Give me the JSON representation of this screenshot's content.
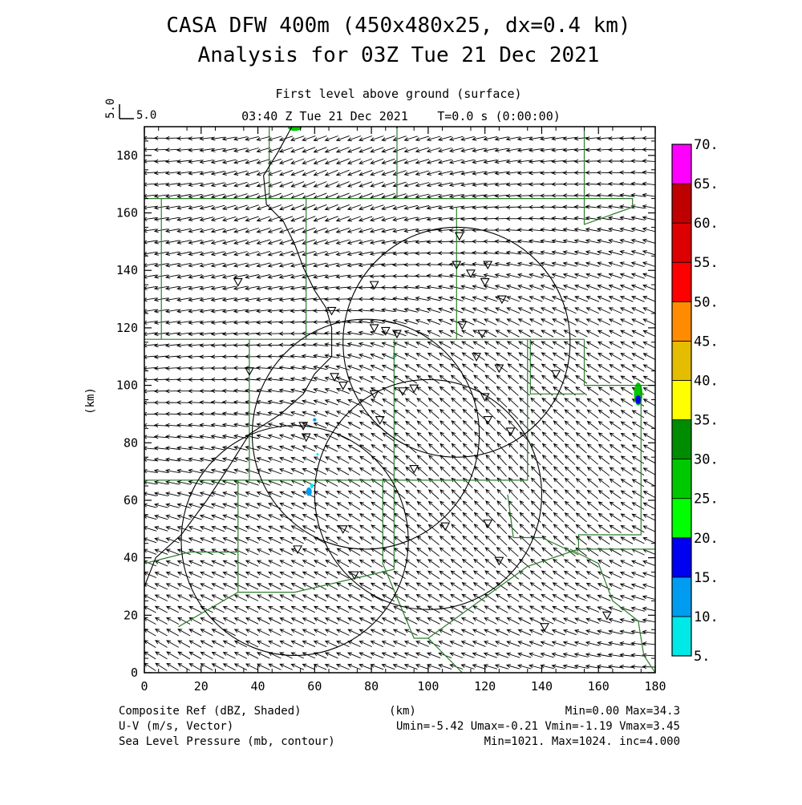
{
  "chart_data": {
    "type": "map",
    "title_line1": "CASA DFW 400m (450x480x25, dx=0.4 km)",
    "title_line2": "Analysis for 03Z Tue 21 Dec 2021",
    "subtitle": "First level above ground (surface)",
    "valid_time": "03:40 Z Tue 21 Dec 2021",
    "time_step": "T=0.0 s (0:00:00)",
    "ref_vector": {
      "label": "5.0",
      "side_label": "5.0",
      "value": 5.0
    },
    "xlabel": "(km)",
    "ylabel": "(km)",
    "xlim": [
      0,
      180
    ],
    "ylim": [
      0,
      190
    ],
    "x_ticks": [
      "0",
      "20",
      "40",
      "60",
      "80",
      "100",
      "120",
      "140",
      "160",
      "180"
    ],
    "x_tick_values": [
      0,
      20,
      40,
      60,
      80,
      100,
      120,
      140,
      160,
      180
    ],
    "y_ticks": [
      "0",
      "20",
      "40",
      "60",
      "80",
      "100",
      "120",
      "140",
      "160",
      "180"
    ],
    "y_tick_values": [
      0,
      20,
      40,
      60,
      80,
      100,
      120,
      140,
      160,
      180
    ],
    "colorbar": {
      "labels": [
        "5.",
        "10.",
        "15.",
        "20.",
        "25.",
        "30.",
        "35.",
        "40.",
        "45.",
        "50.",
        "55.",
        "60.",
        "65.",
        "70."
      ],
      "colors": [
        "#00e8e8",
        "#009cf0",
        "#0000f0",
        "#00ff00",
        "#00c800",
        "#008c00",
        "#ffff00",
        "#e4bc00",
        "#ff8c00",
        "#ff0000",
        "#dc0000",
        "#be0000",
        "#ff00ff"
      ]
    },
    "footer": {
      "left": [
        "Composite Ref (dBZ, Shaded)",
        "U-V (m/s, Vector)",
        "Sea Level Pressure (mb, contour)"
      ],
      "center": "(km)",
      "right": [
        "Min=0.00 Max=34.3",
        "Umin=-5.42 Umax=-0.21 Vmin=-1.19 Vmax=3.45",
        "Min=1021. Max=1024. inc=4.000"
      ]
    },
    "radar_rings": [
      {
        "cx": 110,
        "cy": 115,
        "r": 40
      },
      {
        "cx": 78,
        "cy": 83,
        "r": 40
      },
      {
        "cx": 100,
        "cy": 62,
        "r": 40
      },
      {
        "cx": 53,
        "cy": 46,
        "r": 40
      }
    ],
    "stations": [
      [
        89,
        191
      ],
      [
        111,
        152
      ],
      [
        110,
        142
      ],
      [
        115,
        139
      ],
      [
        121,
        142
      ],
      [
        120,
        136
      ],
      [
        126,
        130
      ],
      [
        33,
        136
      ],
      [
        81,
        135
      ],
      [
        66,
        126
      ],
      [
        81,
        120
      ],
      [
        85,
        119
      ],
      [
        89,
        118
      ],
      [
        112,
        121
      ],
      [
        119,
        118
      ],
      [
        117,
        110
      ],
      [
        125,
        106
      ],
      [
        145,
        104
      ],
      [
        37,
        105
      ],
      [
        67,
        103
      ],
      [
        70,
        100
      ],
      [
        81,
        97
      ],
      [
        91,
        98
      ],
      [
        95,
        99
      ],
      [
        120,
        96
      ],
      [
        121,
        88
      ],
      [
        83,
        88
      ],
      [
        129,
        84
      ],
      [
        56,
        86
      ],
      [
        57,
        82
      ],
      [
        95,
        71
      ],
      [
        70,
        50
      ],
      [
        106,
        51
      ],
      [
        121,
        52
      ],
      [
        54,
        43
      ],
      [
        125,
        39
      ],
      [
        74,
        34
      ],
      [
        141,
        16
      ],
      [
        163,
        20
      ]
    ],
    "reflectivity_cells": [
      {
        "x": 53,
        "y": 190,
        "rx": 2.5,
        "ry": 1.5,
        "dbz": 25
      },
      {
        "x": 174,
        "y": 97,
        "rx": 1.5,
        "ry": 4,
        "dbz": 25
      },
      {
        "x": 174,
        "y": 95,
        "rx": 1,
        "ry": 1.5,
        "dbz": 15
      },
      {
        "x": 58,
        "y": 63,
        "rx": 1,
        "ry": 1.5,
        "dbz": 10
      },
      {
        "x": 59,
        "y": 65,
        "rx": 0.6,
        "ry": 0.8,
        "dbz": 5
      },
      {
        "x": 60,
        "y": 88,
        "rx": 0.6,
        "ry": 0.6,
        "dbz": 10
      },
      {
        "x": 88,
        "y": 110,
        "rx": 0.5,
        "ry": 0.7,
        "dbz": 5
      },
      {
        "x": 61,
        "y": 76,
        "rx": 0.4,
        "ry": 0.4,
        "dbz": 5
      }
    ],
    "county_lines": [
      [
        [
          0,
          165
        ],
        [
          172,
          165
        ],
        [
          172,
          162
        ]
      ],
      [
        [
          0,
          116
        ],
        [
          155,
          116
        ]
      ],
      [
        [
          0,
          67
        ],
        [
          135,
          67
        ],
        [
          135,
          116
        ]
      ],
      [
        [
          155,
          116
        ],
        [
          155,
          100
        ],
        [
          180,
          100
        ]
      ],
      [
        [
          172,
          162
        ],
        [
          155,
          156
        ],
        [
          155,
          190
        ]
      ],
      [
        [
          89,
          190
        ],
        [
          89,
          165
        ]
      ],
      [
        [
          88,
          116
        ],
        [
          88,
          67
        ]
      ],
      [
        [
          110,
          162
        ],
        [
          110,
          116
        ]
      ],
      [
        [
          136,
          116
        ],
        [
          136,
          97
        ],
        [
          155,
          97
        ]
      ],
      [
        [
          37,
          116
        ],
        [
          37,
          67
        ]
      ],
      [
        [
          33,
          67
        ],
        [
          33,
          28
        ],
        [
          12,
          16
        ]
      ],
      [
        [
          88,
          67
        ],
        [
          88,
          36
        ],
        [
          53,
          28
        ],
        [
          33,
          28
        ]
      ],
      [
        [
          84,
          67
        ],
        [
          84,
          38
        ]
      ],
      [
        [
          84,
          38
        ],
        [
          95,
          12
        ],
        [
          100,
          12
        ],
        [
          135,
          37
        ],
        [
          153,
          43
        ],
        [
          180,
          43
        ]
      ],
      [
        [
          153,
          43
        ],
        [
          153,
          48
        ],
        [
          175,
          48
        ],
        [
          175,
          100
        ]
      ],
      [
        [
          57,
          165
        ],
        [
          57,
          116
        ]
      ],
      [
        [
          6,
          165
        ],
        [
          6,
          116
        ]
      ],
      [
        [
          44,
          190
        ],
        [
          44,
          165
        ]
      ],
      [
        [
          0,
          38
        ],
        [
          16,
          42
        ],
        [
          33,
          42
        ]
      ],
      [
        [
          128,
          62
        ],
        [
          130,
          47
        ],
        [
          140,
          47
        ],
        [
          153,
          41
        ]
      ],
      [
        [
          100,
          12
        ],
        [
          112,
          0
        ]
      ],
      [
        [
          150,
          43
        ],
        [
          160,
          38
        ],
        [
          165,
          25
        ],
        [
          174,
          18
        ],
        [
          176,
          6
        ],
        [
          180,
          0
        ]
      ],
      [
        [
          44,
          190
        ],
        [
          50,
          190
        ]
      ]
    ],
    "river": [
      [
        52,
        190
      ],
      [
        47,
        181
      ],
      [
        42,
        173
      ],
      [
        43,
        163
      ],
      [
        49,
        157
      ],
      [
        53,
        149
      ],
      [
        56,
        141
      ],
      [
        60,
        133
      ],
      [
        64,
        127
      ],
      [
        66,
        120
      ],
      [
        66,
        110
      ],
      [
        60,
        104
      ],
      [
        56,
        97
      ],
      [
        48,
        90
      ],
      [
        37,
        83
      ],
      [
        30,
        72
      ],
      [
        22,
        60
      ],
      [
        13,
        48
      ],
      [
        4,
        40
      ],
      [
        0,
        30
      ]
    ],
    "wind": {
      "grid_dx_km": 4,
      "u_range": [
        -5.42,
        -0.21
      ],
      "v_range": [
        -1.19,
        3.45
      ]
    }
  }
}
